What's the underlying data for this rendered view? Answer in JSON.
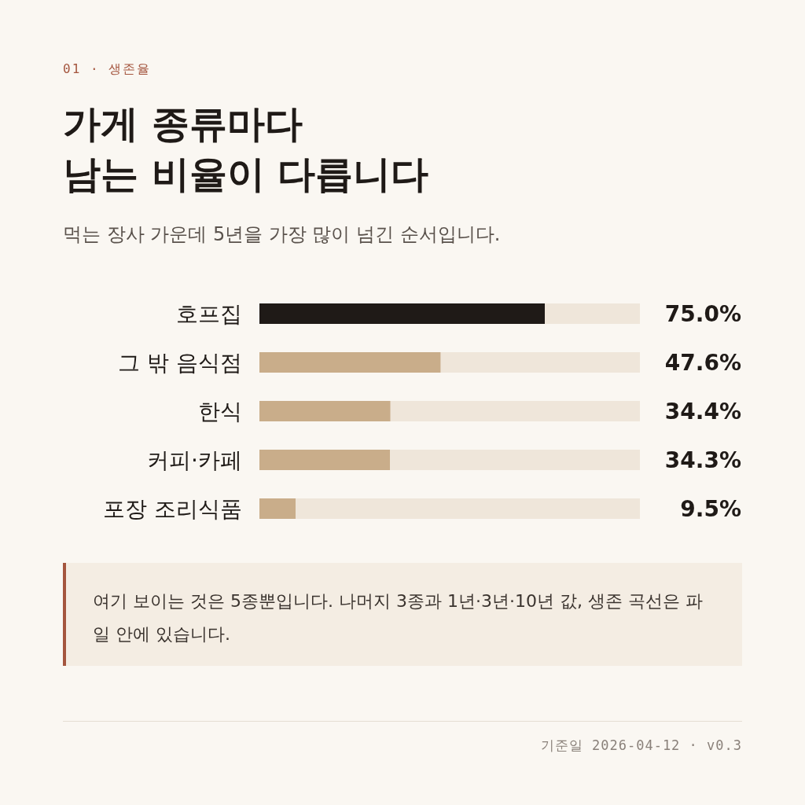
{
  "chart_data": {
    "type": "bar",
    "orientation": "horizontal",
    "title": "가게 종류마다\n남는 비율이 다릅니다",
    "subtitle": "먹는 장사 가운데 5년을 가장 많이 넘긴 순서입니다.",
    "categories": [
      "호프집",
      "그 밖 음식점",
      "한식",
      "커피·카페",
      "포장 조리식품"
    ],
    "values": [
      75.0,
      47.6,
      34.4,
      34.3,
      9.5
    ],
    "colors": [
      "#1f1a17",
      "#c9ad8a",
      "#c9ad8a",
      "#c9ad8a",
      "#c9ad8a"
    ],
    "value_labels": [
      "75.0%",
      "47.6%",
      "34.4%",
      "34.3%",
      "9.5%"
    ],
    "xlim": [
      0,
      100
    ],
    "tick_labels": "y",
    "annotations": [
      "01 · 생존율",
      "여기 보이는 것은 5종뿐입니다. 나머지 3종과 1년·3년·10년 값, 생존 곡선은 파일 안에 있습니다.",
      "기준일 2026-04-12 · v0.3"
    ]
  }
}
